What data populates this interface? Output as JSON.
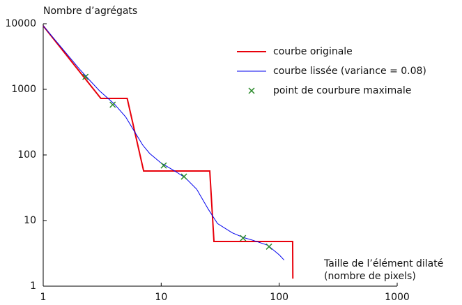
{
  "chart_data": {
    "type": "line",
    "y_label": "Nombre d’agrégats",
    "x_label": [
      "Taille de l’élément dilaté",
      "(nombre de pixels)"
    ],
    "xscale": "log",
    "yscale": "log",
    "xlim": [
      1,
      1000
    ],
    "ylim": [
      1,
      10000
    ],
    "xticks": [
      1,
      10,
      100,
      1000
    ],
    "yticks": [
      1,
      10,
      100,
      1000,
      10000
    ],
    "legend": "upper right",
    "series": [
      {
        "name": "courbe originale",
        "style": "line",
        "color": "#e8000b",
        "x": [
          1,
          3.08,
          5.15,
          7.1,
          25.8,
          28,
          130,
          130.5
        ],
        "values": [
          9300,
          727,
          727,
          57,
          57,
          4.8,
          4.8,
          1.3
        ]
      },
      {
        "name": "courbe lissée (variance = 0.08)",
        "style": "line",
        "color": "#0000ee",
        "x": [
          1,
          1.5,
          2,
          2.5,
          3,
          4,
          5,
          6,
          7,
          8,
          10,
          13,
          16,
          20,
          25,
          30,
          40,
          50,
          60,
          80,
          100,
          110
        ],
        "values": [
          9300,
          3900,
          2100,
          1350,
          950,
          600,
          380,
          220,
          140,
          105,
          75,
          57,
          45,
          30,
          15,
          9,
          6.5,
          5.5,
          5,
          4.2,
          3,
          2.5
        ]
      },
      {
        "name": "point de courbure maximale",
        "style": "marker",
        "color": "#2a8a2a",
        "x": [
          2.28,
          3.88,
          10.5,
          15.6,
          49.4,
          82
        ],
        "values": [
          1550,
          583,
          69,
          46.8,
          5.4,
          4.0
        ]
      }
    ]
  }
}
